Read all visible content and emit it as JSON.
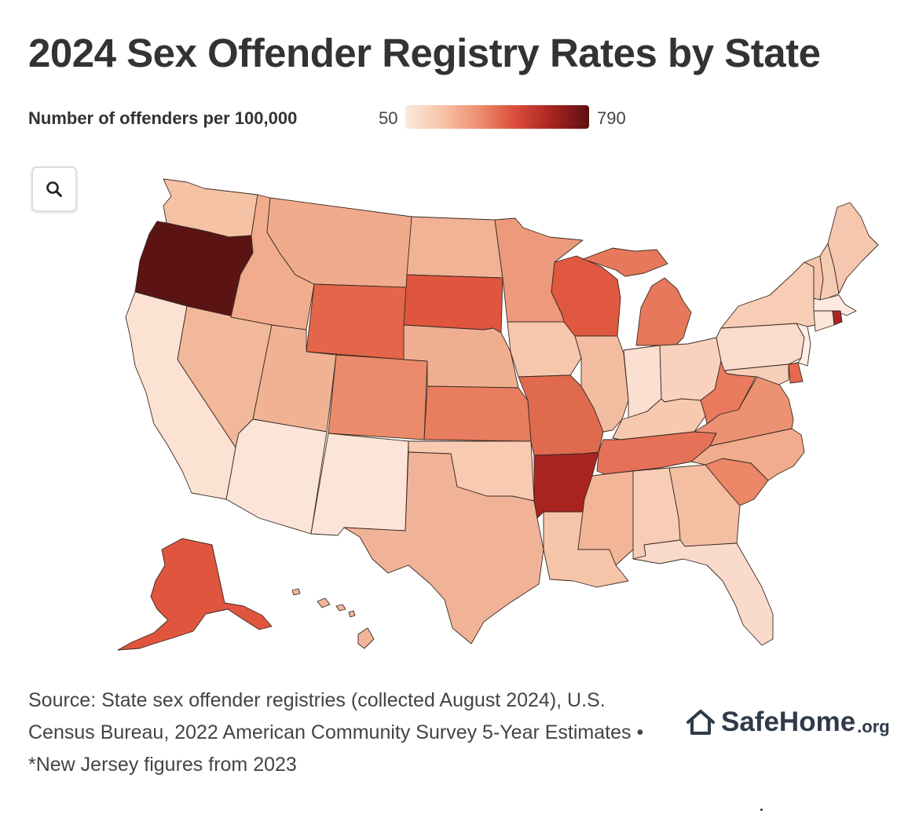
{
  "title": "2024 Sex Offender Registry Rates by State",
  "legend": {
    "label": "Number of offenders per 100,000",
    "min": "50",
    "max": "790",
    "gradient_colors": [
      "#fbe9de",
      "#f6c4a8",
      "#ee8f6f",
      "#db4c3a",
      "#a82420",
      "#5a1012"
    ]
  },
  "search_icon": "magnifier-icon",
  "map": {
    "type": "choropleth",
    "region": "United States",
    "state_colors": {
      "WA": "#f5c2a6",
      "OR": "#5c1313",
      "CA": "#fbe2d3",
      "NV": "#f2b89b",
      "ID": "#f0ac8d",
      "MT": "#f0ab8c",
      "WY": "#e3654a",
      "UT": "#f1b294",
      "AZ": "#fbe5d8",
      "NM": "#fce5d8",
      "CO": "#ec8b6b",
      "ND": "#f0b396",
      "SD": "#e0553e",
      "NE": "#f0ae91",
      "KS": "#e97d5f",
      "OK": "#f7cab1",
      "TX": "#f1b398",
      "MN": "#ec9a7b",
      "IA": "#f6c6ad",
      "MO": "#e06a4e",
      "AR": "#a82420",
      "LA": "#f5c4a9",
      "WI": "#e0583f",
      "IL": "#f3bca1",
      "MI": "#e8785b",
      "IN": "#fbe0d1",
      "OH": "#f8d2be",
      "KY": "#f6c9b0",
      "TN": "#e57158",
      "MS": "#f2b598",
      "AL": "#f7cdb6",
      "GA": "#f4bea3",
      "FL": "#fadacb",
      "SC": "#eb8667",
      "NC": "#f1ab8d",
      "VA": "#ec9272",
      "WV": "#e97a5d",
      "PA": "#fadccc",
      "NY": "#f7cdb6",
      "ME": "#f6c7af",
      "VT": "#f5c4a9",
      "NH": "#f5cbb3",
      "MA": "#fde9e0",
      "CT": "#fbe4d8",
      "RI": "#a82420",
      "NJ": "#fdeee6",
      "DE": "#e8694f",
      "MD": "#f7cfb9",
      "AK": "#e0553e",
      "HI": "#f2b598"
    }
  },
  "source": "Source: State sex offender registries (collected August 2024), U.S. Census Bureau, 2022 American Community Survey 5-Year Estimates • *New Jersey figures from 2023",
  "brand": {
    "name": "SafeHome",
    "tld": ".org",
    "icon": "house-icon"
  }
}
